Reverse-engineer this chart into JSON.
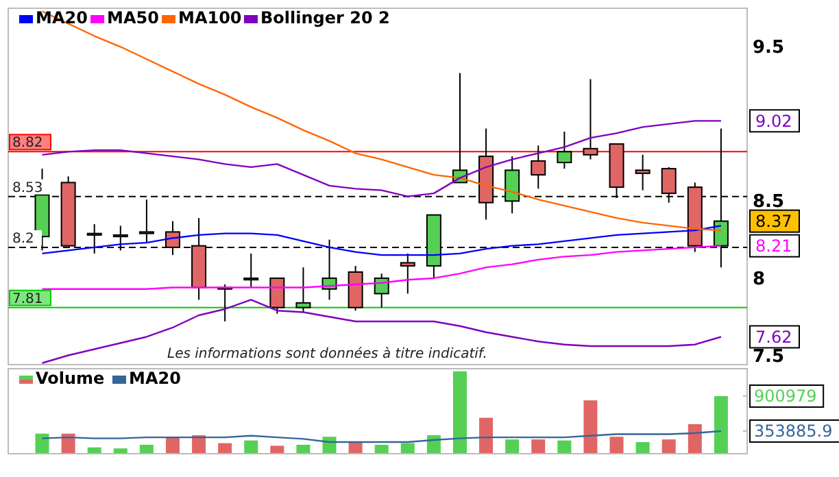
{
  "chart_data": [
    {
      "type": "candlestick",
      "categories": [
        null,
        null,
        null,
        null,
        null,
        null,
        null,
        null,
        null,
        null,
        null,
        null,
        null,
        null,
        null,
        null,
        null,
        null,
        null,
        null,
        null,
        null,
        null,
        null,
        null,
        null,
        null
      ],
      "ohlc": [
        [
          8.27,
          8.71,
          8.18,
          8.54
        ],
        [
          8.62,
          8.66,
          8.21,
          8.21
        ],
        [
          8.28,
          8.35,
          8.16,
          8.29
        ],
        [
          8.27,
          8.34,
          8.18,
          8.28
        ],
        [
          8.29,
          8.51,
          8.23,
          8.3
        ],
        [
          8.3,
          8.37,
          8.15,
          8.2
        ],
        [
          8.21,
          8.39,
          7.86,
          7.94
        ],
        [
          7.94,
          7.96,
          7.72,
          7.93
        ],
        [
          7.99,
          8.16,
          7.94,
          8.0
        ],
        [
          8.0,
          8.0,
          7.77,
          7.81
        ],
        [
          7.81,
          8.07,
          7.78,
          7.84
        ],
        [
          7.93,
          8.25,
          7.86,
          8.0
        ],
        [
          8.04,
          8.08,
          7.79,
          7.81
        ],
        [
          7.9,
          8.03,
          7.81,
          8.0
        ],
        [
          8.1,
          8.16,
          7.9,
          8.08
        ],
        [
          8.08,
          8.41,
          8.0,
          8.41
        ],
        [
          8.62,
          9.33,
          8.62,
          8.7
        ],
        [
          8.79,
          8.97,
          8.38,
          8.49
        ],
        [
          8.5,
          8.79,
          8.42,
          8.7
        ],
        [
          8.76,
          8.86,
          8.58,
          8.67
        ],
        [
          8.75,
          8.95,
          8.71,
          8.82
        ],
        [
          8.84,
          9.29,
          8.77,
          8.8
        ],
        [
          8.87,
          8.87,
          8.52,
          8.59
        ],
        [
          8.7,
          8.8,
          8.57,
          8.68
        ],
        [
          8.71,
          8.72,
          8.49,
          8.55
        ],
        [
          8.59,
          8.62,
          8.17,
          8.21
        ],
        [
          8.21,
          8.97,
          8.07,
          8.37
        ]
      ],
      "colors": [
        "#55d055",
        "#e06666",
        "#55d055",
        "#55d055",
        "#55d055",
        "#e06666",
        "#e06666",
        "#e06666",
        "#55d055",
        "#e06666",
        "#55d055",
        "#55d055",
        "#e06666",
        "#55d055",
        "#e06666",
        "#55d055",
        "#55d055",
        "#e06666",
        "#55d055",
        "#e06666",
        "#55d055",
        "#e06666",
        "#e06666",
        "#e06666",
        "#e06666",
        "#e06666",
        "#55d055"
      ],
      "series": [
        {
          "name": "MA20",
          "type": "line",
          "color": "#0000ff",
          "values": [
            8.16,
            8.18,
            8.2,
            8.22,
            8.23,
            8.26,
            8.28,
            8.29,
            8.29,
            8.28,
            8.24,
            8.2,
            8.17,
            8.15,
            8.15,
            8.15,
            8.16,
            8.19,
            8.21,
            8.22,
            8.24,
            8.26,
            8.28,
            8.29,
            8.3,
            8.31,
            8.34
          ]
        },
        {
          "name": "MA50",
          "type": "line",
          "color": "#ff00ff",
          "values": [
            7.93,
            7.93,
            7.93,
            7.93,
            7.93,
            7.94,
            7.94,
            7.94,
            7.94,
            7.94,
            7.94,
            7.95,
            7.96,
            7.97,
            7.99,
            8.0,
            8.03,
            8.07,
            8.09,
            8.12,
            8.14,
            8.15,
            8.17,
            8.18,
            8.19,
            8.2,
            8.21
          ]
        },
        {
          "name": "MA100",
          "type": "line",
          "color": "#ff6600",
          "values": [
            9.73,
            9.65,
            9.57,
            9.5,
            9.42,
            9.34,
            9.26,
            9.19,
            9.11,
            9.04,
            8.96,
            8.89,
            8.81,
            8.77,
            8.72,
            8.67,
            8.65,
            8.6,
            8.56,
            8.51,
            8.47,
            8.43,
            8.39,
            8.36,
            8.34,
            8.32,
            8.31
          ]
        },
        {
          "name": "Bollinger 20 2",
          "type": "line",
          "color": "#7f00bf",
          "values": [
            8.8,
            8.82,
            8.83,
            8.83,
            8.81,
            8.79,
            8.77,
            8.74,
            8.72,
            8.74,
            8.67,
            8.6,
            8.58,
            8.57,
            8.53,
            8.55,
            8.65,
            8.72,
            8.77,
            8.81,
            8.85,
            8.91,
            8.94,
            8.98,
            9.0,
            9.02,
            9.02
          ]
        },
        {
          "type": "line",
          "color": "#7f00bf",
          "values": [
            7.45,
            7.5,
            7.54,
            7.58,
            7.62,
            7.68,
            7.76,
            7.8,
            7.86,
            7.79,
            7.78,
            7.75,
            7.72,
            7.72,
            7.72,
            7.72,
            7.69,
            7.65,
            7.62,
            7.59,
            7.57,
            7.56,
            7.56,
            7.56,
            7.56,
            7.57,
            7.62
          ]
        }
      ],
      "ylim": [
        7.44,
        9.75
      ],
      "yticks": [
        7.5,
        8,
        8.5,
        9.5
      ],
      "grid": false,
      "legend": "top left",
      "ref_lines": [
        {
          "axis": "y",
          "value": 8.82,
          "label": "8.82",
          "color": "#ff0000",
          "line_style": "solid"
        },
        {
          "axis": "y",
          "value": 8.53,
          "label": "8.53",
          "color": "#000000",
          "line_style": "dashed"
        },
        {
          "axis": "y",
          "value": 8.2,
          "label": "8.2",
          "color": "#000000",
          "line_style": "dashed"
        },
        {
          "axis": "y",
          "value": 7.81,
          "label": "7.81",
          "color": "#00cc00",
          "line_style": "solid"
        }
      ],
      "annotations": [
        {
          "text": "9.02",
          "y": 9.02
        },
        {
          "text": "8.37",
          "y": 8.37
        },
        {
          "text": "8.21",
          "y": 8.21
        },
        {
          "text": "7.62",
          "y": 7.62
        },
        "Les informations sont données à titre indicatif."
      ]
    },
    {
      "type": "bar",
      "categories": [
        null,
        null,
        null,
        null,
        null,
        null,
        null,
        null,
        null,
        null,
        null,
        null,
        null,
        null,
        null,
        null,
        null,
        null,
        null,
        null,
        null,
        null,
        null,
        null,
        null,
        null,
        null
      ],
      "series": [
        {
          "name": "Volume",
          "type": "bar",
          "colors": [
            "#55d055",
            "#e06666",
            "#55d055",
            "#55d055",
            "#55d055",
            "#e06666",
            "#e06666",
            "#e06666",
            "#55d055",
            "#e06666",
            "#55d055",
            "#55d055",
            "#e06666",
            "#55d055",
            "#55d055",
            "#55d055",
            "#55d055",
            "#e06666",
            "#55d055",
            "#e06666",
            "#55d055",
            "#e06666",
            "#e06666",
            "#55d055",
            "#e06666",
            "#e06666",
            "#55d055"
          ],
          "values": [
            314000,
            314000,
            99000,
            83000,
            140000,
            265000,
            289000,
            165000,
            207000,
            124000,
            140000,
            265000,
            174000,
            140000,
            165000,
            289000,
            1290000,
            562000,
            223000,
            223000,
            207000,
            835000,
            265000,
            182000,
            223000,
            463000,
            900979
          ]
        }
      ],
      "ylim": [
        0,
        1330000
      ],
      "yticks": [
        {
          "value": 353885.9,
          "label": "353885.9"
        },
        {
          "value": 900979,
          "label": "900979"
        }
      ],
      "legend": "top left"
    },
    {
      "type": "line",
      "categories": [
        null,
        null,
        null,
        null,
        null,
        null,
        null,
        null,
        null,
        null,
        null,
        null,
        null,
        null,
        null,
        null,
        null,
        null,
        null,
        null,
        null,
        null,
        null,
        null,
        null,
        null,
        null
      ],
      "series": [
        {
          "name": "MA20",
          "type": "line",
          "color": "#336699",
          "values": [
            240000,
            256000,
            240000,
            240000,
            256000,
            256000,
            256000,
            256000,
            281000,
            256000,
            232000,
            182000,
            182000,
            182000,
            182000,
            215000,
            240000,
            256000,
            256000,
            256000,
            256000,
            281000,
            306000,
            306000,
            306000,
            322000,
            353885.9
          ]
        }
      ],
      "ylim": [
        0,
        1330000
      ],
      "yticks": [
        353885.9,
        900979
      ],
      "tick_labels": false,
      "legend": "top left"
    }
  ]
}
